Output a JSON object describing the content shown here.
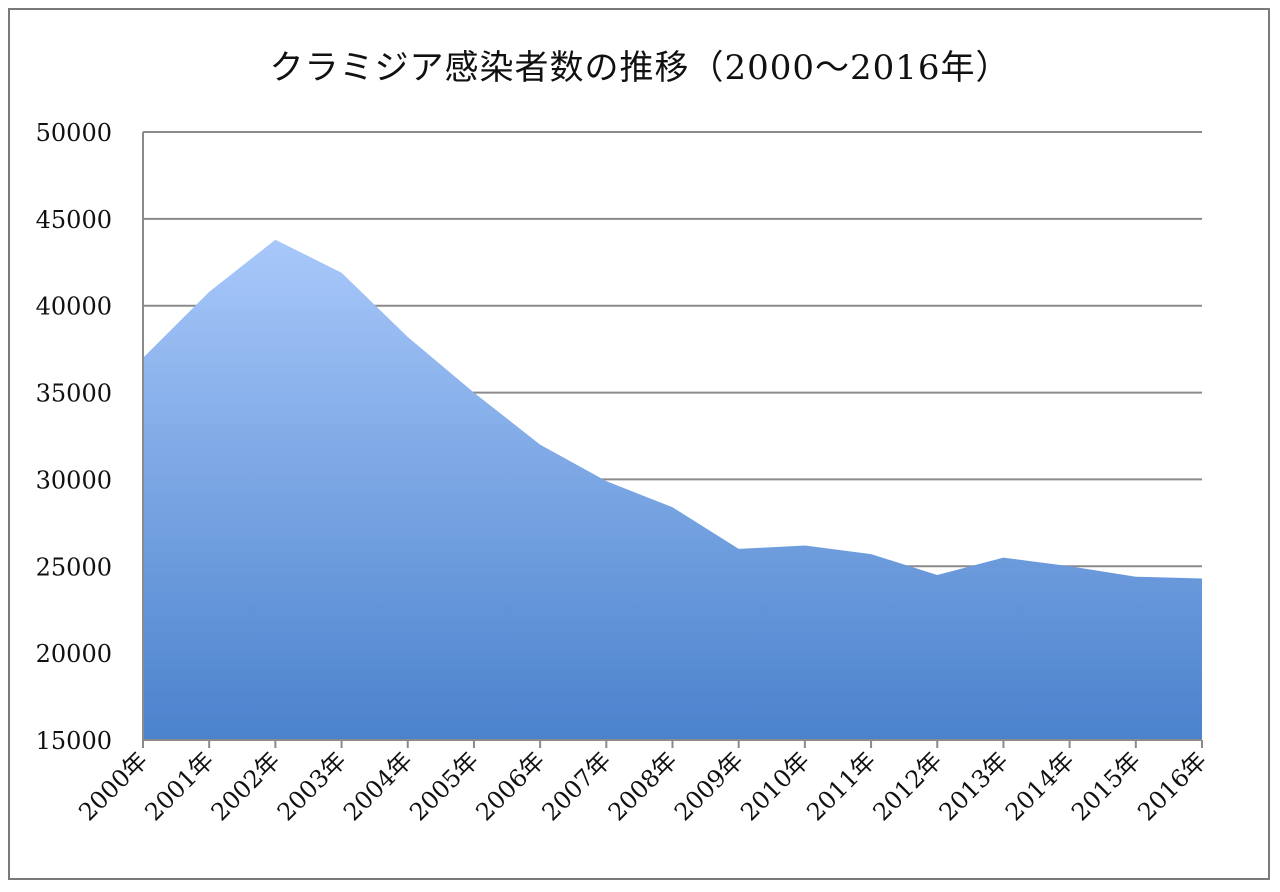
{
  "chart_data": {
    "type": "area",
    "title": "クラミジア感染者数の推移（2000〜2016年）",
    "xlabel": "",
    "ylabel": "",
    "categories": [
      "2000年",
      "2001年",
      "2002年",
      "2003年",
      "2004年",
      "2005年",
      "2006年",
      "2007年",
      "2008年",
      "2009年",
      "2010年",
      "2011年",
      "2012年",
      "2013年",
      "2014年",
      "2015年",
      "2016年"
    ],
    "values": [
      37000,
      40800,
      43800,
      41900,
      38200,
      35000,
      32000,
      29900,
      28400,
      26000,
      26200,
      25700,
      24500,
      25500,
      25000,
      24400,
      24300
    ],
    "ylim": [
      15000,
      50000
    ],
    "yticks": [
      "50000",
      "45000",
      "40000",
      "35000",
      "30000",
      "25000",
      "20000",
      "15000"
    ],
    "ytick_values": [
      50000,
      45000,
      40000,
      35000,
      30000,
      25000,
      20000,
      15000
    ],
    "grid": true,
    "legend": "none",
    "colors": {
      "fill_top": "#a8c8fa",
      "fill_bottom": "#4a82cc",
      "grid": "#8a8a8a",
      "axis": "#8a8a8a"
    }
  }
}
